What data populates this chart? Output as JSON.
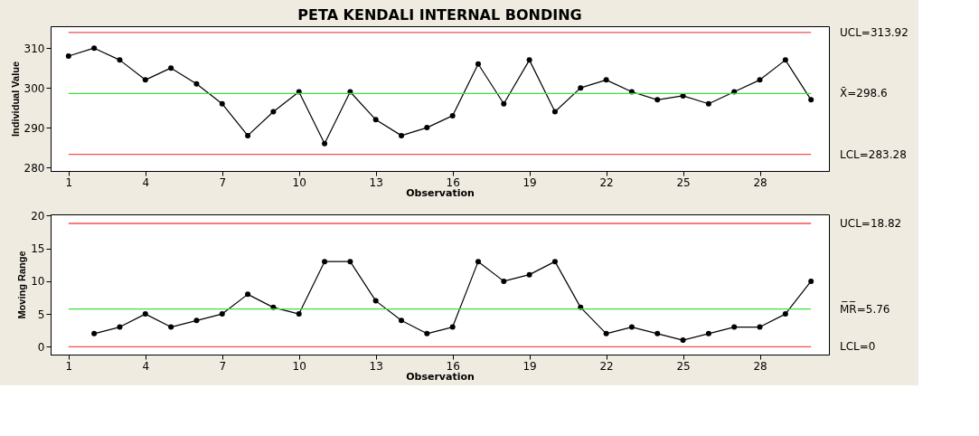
{
  "chart_data": [
    {
      "type": "line",
      "title": "PETA KENDALI INTERNAL BONDING",
      "xlabel": "Observation",
      "ylabel": "Individual Value",
      "x": [
        1,
        2,
        3,
        4,
        5,
        6,
        7,
        8,
        9,
        10,
        11,
        12,
        13,
        14,
        15,
        16,
        17,
        18,
        19,
        20,
        21,
        22,
        23,
        24,
        25,
        26,
        27,
        28,
        29,
        30
      ],
      "series": [
        {
          "color": "#000000",
          "values": [
            308,
            310,
            307,
            302,
            305,
            301,
            296,
            288,
            294,
            299,
            286,
            299,
            292,
            288,
            290,
            293,
            306,
            296,
            307,
            294,
            300,
            302,
            299,
            297,
            298,
            296,
            299,
            302,
            307,
            297
          ]
        }
      ],
      "xlim": [
        0.3,
        30.7
      ],
      "xticks": [
        1,
        4,
        7,
        10,
        13,
        16,
        19,
        22,
        25,
        28
      ],
      "ylim": [
        279.1,
        315.5
      ],
      "yticks": [
        280,
        290,
        300,
        310
      ],
      "ref_lines": [
        {
          "axis": "y",
          "value": 313.92,
          "label": "UCL=313.92",
          "color": "#f05050"
        },
        {
          "axis": "y",
          "value": 298.6,
          "label": "X̄=298.6",
          "color": "#40e040"
        },
        {
          "axis": "y",
          "value": 283.28,
          "label": "LCL=283.28",
          "color": "#f05050"
        }
      ],
      "marker": "circle",
      "line_style": "solid",
      "grid": false
    },
    {
      "type": "line",
      "xlabel": "Observation",
      "ylabel": "Moving Range",
      "series": [
        {
          "color": "#000000",
          "x": [
            2,
            3,
            4,
            5,
            6,
            7,
            8,
            9,
            10,
            11,
            12,
            13,
            14,
            15,
            16,
            17,
            18,
            19,
            20,
            21,
            22,
            23,
            24,
            25,
            26,
            27,
            28,
            29,
            30
          ],
          "values": [
            2,
            3,
            5,
            3,
            4,
            5,
            8,
            6,
            5,
            13,
            13,
            7,
            4,
            2,
            3,
            13,
            10,
            11,
            13,
            6,
            2,
            3,
            2,
            1,
            2,
            3,
            3,
            5,
            10
          ]
        }
      ],
      "xlim": [
        0.3,
        30.7
      ],
      "xticks": [
        1,
        4,
        7,
        10,
        13,
        16,
        19,
        22,
        25,
        28
      ],
      "ylim": [
        -1.2,
        20.2
      ],
      "yticks": [
        0,
        5,
        10,
        15,
        20
      ],
      "ref_lines": [
        {
          "axis": "y",
          "value": 18.82,
          "label": "UCL=18.82",
          "color": "#f05050"
        },
        {
          "axis": "y",
          "value": 5.76,
          "label": "M̅R̅=5.76",
          "color": "#40e040"
        },
        {
          "axis": "y",
          "value": 0,
          "label": "LCL=0",
          "color": "#f05050"
        }
      ],
      "marker": "circle",
      "line_style": "solid",
      "grid": false
    }
  ]
}
